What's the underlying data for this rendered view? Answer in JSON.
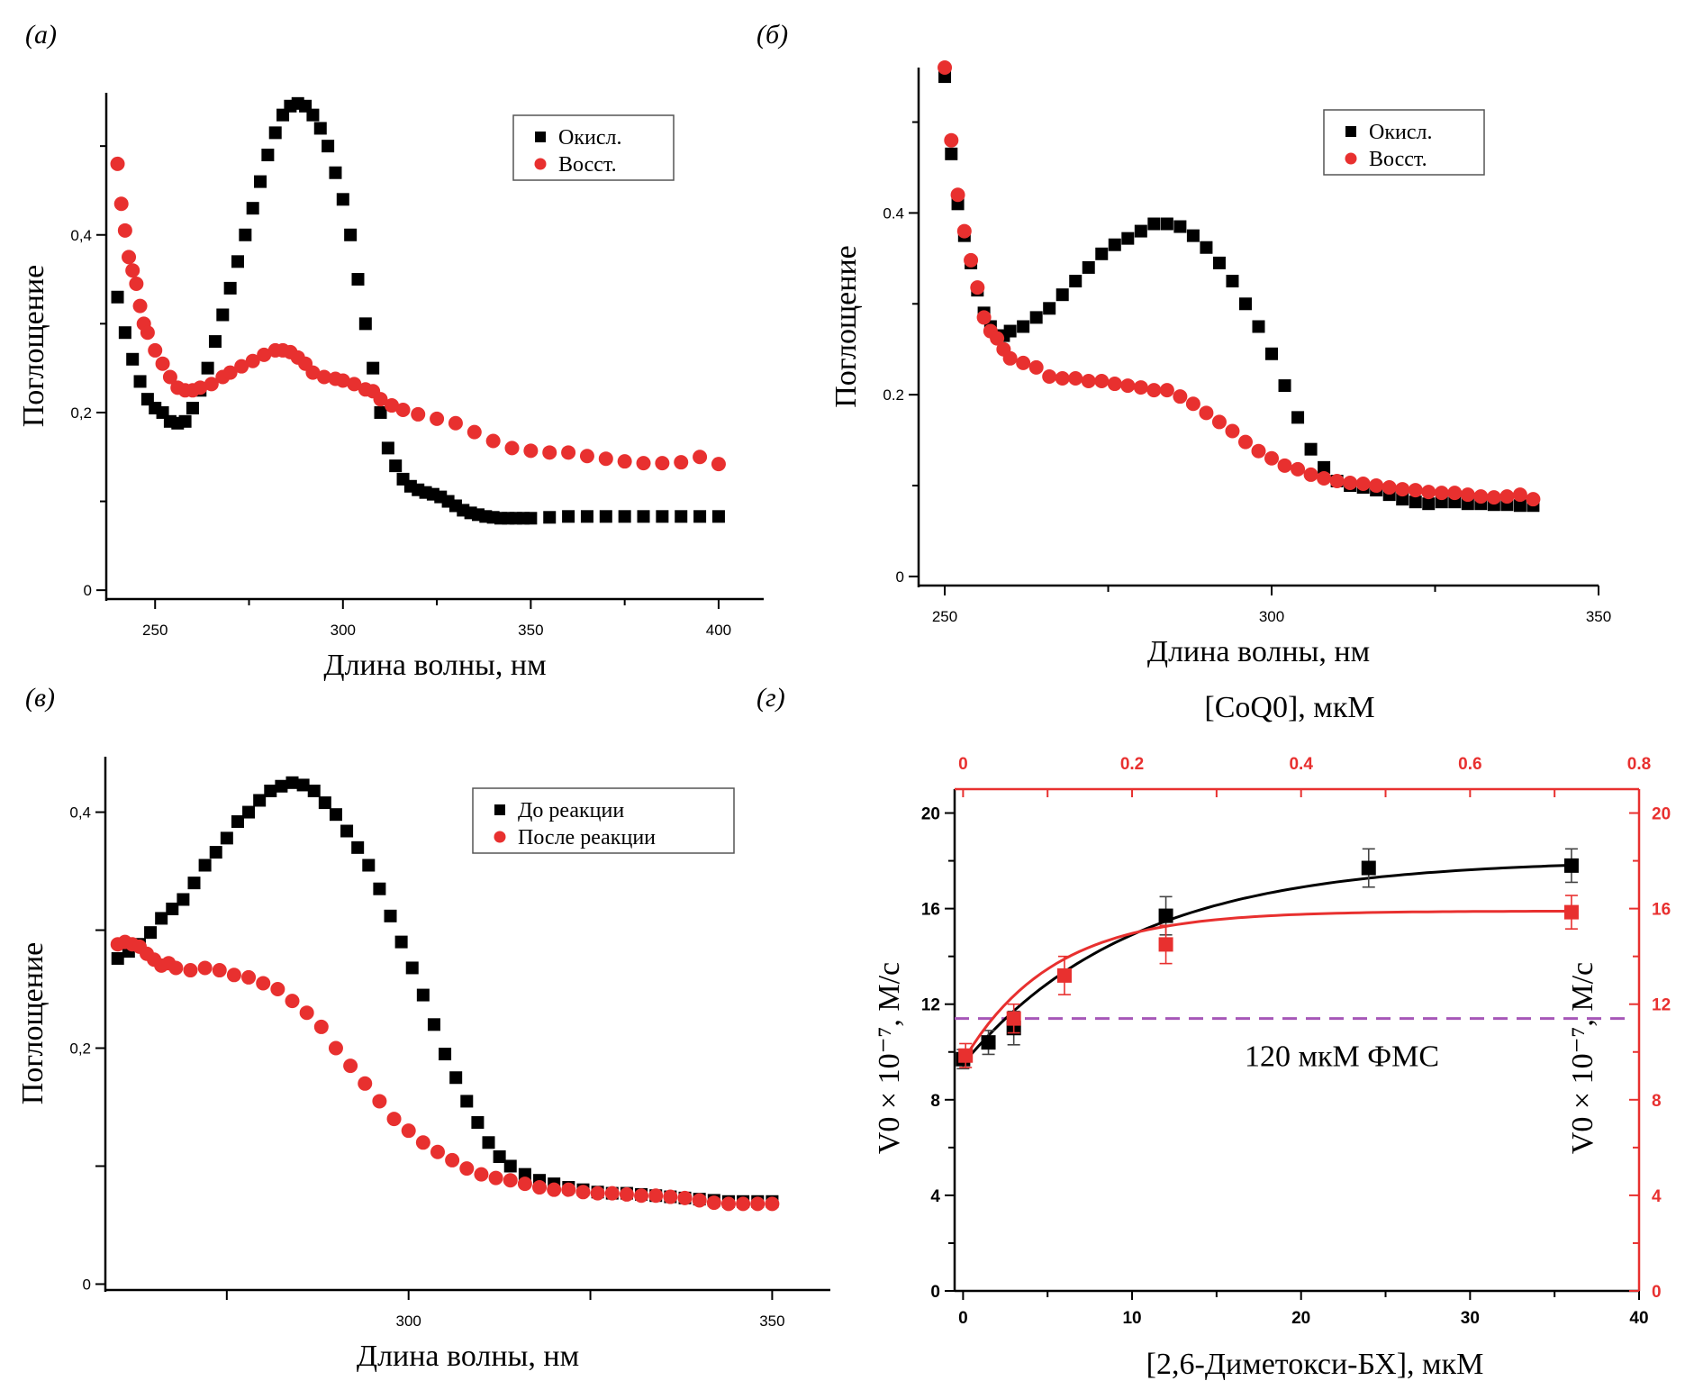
{
  "colors": {
    "black_series": "#000000",
    "red_series": "#e8302f",
    "dashed_line": "#a657b8",
    "axis_red": "#e8302f"
  },
  "chart_data": [
    {
      "id": "a",
      "panel_label": "(а)",
      "type": "scatter",
      "xlabel": "Длина волны, нм",
      "ylabel": "Поглощение",
      "xlim": [
        237,
        412
      ],
      "ylim": [
        -0.01,
        0.56
      ],
      "xticks": [
        250,
        300,
        350,
        400
      ],
      "xtick_labels": [
        "250",
        "300",
        "350",
        "400"
      ],
      "yticks": [
        0,
        0.2,
        0.4
      ],
      "ytick_labels": [
        "0",
        "0,2",
        "0,4"
      ],
      "grid": false,
      "legend_position": "top-right",
      "series": [
        {
          "name": "Окисл.",
          "marker": "square",
          "color": "#000000",
          "x": [
            240,
            242,
            244,
            246,
            248,
            250,
            252,
            254,
            256,
            258,
            260,
            262,
            264,
            266,
            268,
            270,
            272,
            274,
            276,
            278,
            280,
            282,
            284,
            286,
            288,
            290,
            292,
            294,
            296,
            298,
            300,
            302,
            304,
            306,
            308,
            310,
            312,
            314,
            316,
            318,
            320,
            322,
            324,
            326,
            328,
            330,
            332,
            334,
            336,
            338,
            340,
            342,
            344,
            346,
            348,
            350,
            355,
            360,
            365,
            370,
            375,
            380,
            385,
            390,
            395,
            400
          ],
          "y": [
            0.33,
            0.29,
            0.26,
            0.235,
            0.215,
            0.205,
            0.2,
            0.19,
            0.188,
            0.19,
            0.205,
            0.225,
            0.25,
            0.28,
            0.31,
            0.34,
            0.37,
            0.4,
            0.43,
            0.46,
            0.49,
            0.515,
            0.535,
            0.545,
            0.548,
            0.545,
            0.535,
            0.52,
            0.5,
            0.47,
            0.44,
            0.4,
            0.35,
            0.3,
            0.25,
            0.2,
            0.16,
            0.14,
            0.125,
            0.117,
            0.113,
            0.11,
            0.108,
            0.105,
            0.1,
            0.095,
            0.09,
            0.087,
            0.085,
            0.083,
            0.082,
            0.081,
            0.081,
            0.081,
            0.081,
            0.081,
            0.082,
            0.083,
            0.083,
            0.083,
            0.083,
            0.083,
            0.083,
            0.083,
            0.083,
            0.083
          ]
        },
        {
          "name": "Восст.",
          "marker": "circle",
          "color": "#e8302f",
          "x": [
            240,
            241,
            242,
            243,
            244,
            245,
            246,
            247,
            248,
            250,
            252,
            254,
            256,
            258,
            260,
            262,
            265,
            268,
            270,
            273,
            276,
            279,
            282,
            284,
            286,
            288,
            290,
            292,
            295,
            298,
            300,
            303,
            306,
            308,
            310,
            313,
            316,
            320,
            325,
            330,
            335,
            340,
            345,
            350,
            355,
            360,
            365,
            370,
            375,
            380,
            385,
            390,
            395,
            400
          ],
          "y": [
            0.48,
            0.435,
            0.405,
            0.375,
            0.36,
            0.345,
            0.32,
            0.3,
            0.29,
            0.27,
            0.255,
            0.24,
            0.228,
            0.225,
            0.225,
            0.228,
            0.232,
            0.24,
            0.245,
            0.252,
            0.258,
            0.265,
            0.27,
            0.27,
            0.268,
            0.262,
            0.255,
            0.245,
            0.24,
            0.238,
            0.236,
            0.232,
            0.226,
            0.224,
            0.215,
            0.208,
            0.203,
            0.198,
            0.193,
            0.188,
            0.178,
            0.168,
            0.16,
            0.157,
            0.155,
            0.155,
            0.151,
            0.148,
            0.145,
            0.143,
            0.143,
            0.144,
            0.15,
            0.142
          ]
        }
      ]
    },
    {
      "id": "b",
      "panel_label": "(б)",
      "type": "scatter",
      "xlabel": "Длина волны, нм",
      "ylabel": "Поглощение",
      "xlim": [
        246,
        350
      ],
      "ylim": [
        -0.01,
        0.56
      ],
      "xticks": [
        250,
        300,
        350
      ],
      "xtick_labels": [
        "250",
        "300",
        "350"
      ],
      "yticks": [
        0,
        0.2,
        0.4
      ],
      "ytick_labels": [
        "0",
        "0.2",
        "0.4"
      ],
      "grid": false,
      "legend_position": "top-right",
      "series": [
        {
          "name": "Окисл.",
          "marker": "square",
          "color": "#000000",
          "x": [
            250,
            251,
            252,
            253,
            254,
            255,
            256,
            257,
            258,
            259,
            260,
            262,
            264,
            266,
            268,
            270,
            272,
            274,
            276,
            278,
            280,
            282,
            284,
            286,
            288,
            290,
            292,
            294,
            296,
            298,
            300,
            302,
            304,
            306,
            308,
            310,
            312,
            314,
            316,
            318,
            320,
            322,
            324,
            326,
            328,
            330,
            332,
            334,
            336,
            338,
            340
          ],
          "y": [
            0.55,
            0.465,
            0.41,
            0.375,
            0.345,
            0.315,
            0.29,
            0.275,
            0.265,
            0.265,
            0.27,
            0.275,
            0.285,
            0.295,
            0.31,
            0.325,
            0.34,
            0.355,
            0.365,
            0.372,
            0.38,
            0.388,
            0.388,
            0.385,
            0.375,
            0.362,
            0.345,
            0.325,
            0.3,
            0.275,
            0.245,
            0.21,
            0.175,
            0.14,
            0.12,
            0.105,
            0.1,
            0.098,
            0.095,
            0.09,
            0.085,
            0.082,
            0.08,
            0.082,
            0.082,
            0.08,
            0.08,
            0.079,
            0.079,
            0.078,
            0.078
          ]
        },
        {
          "name": "Восст.",
          "marker": "circle",
          "color": "#e8302f",
          "x": [
            250,
            251,
            252,
            253,
            254,
            255,
            256,
            257,
            258,
            259,
            260,
            262,
            264,
            266,
            268,
            270,
            272,
            274,
            276,
            278,
            280,
            282,
            284,
            286,
            288,
            290,
            292,
            294,
            296,
            298,
            300,
            302,
            304,
            306,
            308,
            310,
            312,
            314,
            316,
            318,
            320,
            322,
            324,
            326,
            328,
            330,
            332,
            334,
            336,
            338,
            340
          ],
          "y": [
            0.56,
            0.48,
            0.42,
            0.38,
            0.348,
            0.318,
            0.285,
            0.27,
            0.262,
            0.25,
            0.24,
            0.235,
            0.23,
            0.22,
            0.218,
            0.218,
            0.215,
            0.215,
            0.212,
            0.21,
            0.208,
            0.205,
            0.205,
            0.198,
            0.19,
            0.18,
            0.17,
            0.16,
            0.148,
            0.138,
            0.13,
            0.122,
            0.118,
            0.112,
            0.108,
            0.105,
            0.103,
            0.102,
            0.1,
            0.098,
            0.096,
            0.095,
            0.093,
            0.092,
            0.092,
            0.09,
            0.088,
            0.087,
            0.088,
            0.09,
            0.085
          ]
        }
      ]
    },
    {
      "id": "c",
      "panel_label": "(в)",
      "type": "scatter",
      "xlabel": "Длина волны, нм",
      "ylabel": "Поглощение",
      "xlim": [
        258.3,
        358
      ],
      "ylim": [
        -0.005,
        0.447
      ],
      "xticks": [
        275,
        300,
        325,
        350
      ],
      "xtick_labels": [
        "",
        "300",
        "",
        "350"
      ],
      "yticks": [
        0,
        0.1,
        0.2,
        0.3,
        0.4
      ],
      "ytick_labels": [
        "0",
        "",
        "0,2",
        "",
        "0,4"
      ],
      "grid": false,
      "legend_position": "top-right",
      "series": [
        {
          "name": "До реакции",
          "marker": "square",
          "color": "#000000",
          "x": [
            260,
            261.5,
            263,
            264.5,
            266,
            267.5,
            269,
            270.5,
            272,
            273.5,
            275,
            276.5,
            278,
            279.5,
            281,
            282.5,
            284,
            285.5,
            287,
            288.5,
            290,
            291.5,
            293,
            294.5,
            296,
            297.5,
            299,
            300.5,
            302,
            303.5,
            305,
            306.5,
            308,
            309.5,
            311,
            312.5,
            314,
            316,
            318,
            320,
            322,
            324,
            326,
            328,
            330,
            332,
            334,
            336,
            338,
            340,
            342,
            344,
            346,
            348,
            350
          ],
          "y": [
            0.276,
            0.282,
            0.288,
            0.298,
            0.31,
            0.318,
            0.326,
            0.34,
            0.355,
            0.366,
            0.378,
            0.392,
            0.4,
            0.41,
            0.418,
            0.422,
            0.425,
            0.423,
            0.418,
            0.408,
            0.398,
            0.384,
            0.37,
            0.355,
            0.335,
            0.312,
            0.29,
            0.268,
            0.245,
            0.22,
            0.195,
            0.175,
            0.155,
            0.137,
            0.12,
            0.108,
            0.1,
            0.093,
            0.088,
            0.085,
            0.082,
            0.08,
            0.078,
            0.077,
            0.077,
            0.076,
            0.075,
            0.074,
            0.073,
            0.072,
            0.071,
            0.07,
            0.07,
            0.07,
            0.07
          ]
        },
        {
          "name": "После реакции",
          "marker": "circle",
          "color": "#e8302f",
          "x": [
            260,
            261,
            262,
            263,
            264,
            265,
            266,
            267,
            268,
            270,
            272,
            274,
            276,
            278,
            280,
            282,
            284,
            286,
            288,
            290,
            292,
            294,
            296,
            298,
            300,
            302,
            304,
            306,
            308,
            310,
            312,
            314,
            316,
            318,
            320,
            322,
            324,
            326,
            328,
            330,
            332,
            334,
            336,
            338,
            340,
            342,
            344,
            346,
            348,
            350
          ],
          "y": [
            0.288,
            0.29,
            0.288,
            0.286,
            0.28,
            0.275,
            0.27,
            0.272,
            0.268,
            0.266,
            0.268,
            0.266,
            0.262,
            0.26,
            0.255,
            0.25,
            0.24,
            0.23,
            0.218,
            0.2,
            0.185,
            0.17,
            0.155,
            0.14,
            0.13,
            0.12,
            0.112,
            0.105,
            0.098,
            0.093,
            0.09,
            0.088,
            0.085,
            0.082,
            0.08,
            0.08,
            0.078,
            0.077,
            0.077,
            0.076,
            0.075,
            0.075,
            0.074,
            0.073,
            0.071,
            0.069,
            0.068,
            0.068,
            0.068,
            0.068
          ]
        }
      ]
    },
    {
      "id": "d",
      "panel_label": "(г)",
      "type": "scatter",
      "xlabel": "[2,6-Диметокси-БХ], мкМ",
      "xlabel_top": "[CoQ0], мкМ",
      "ylabel": "V0 × 10⁻⁷, М/с",
      "ylabel_right": "V0 × 10⁻⁷, М/с",
      "xlim": [
        -0.5,
        40
      ],
      "xlim_top": [
        -0.01,
        0.8
      ],
      "ylim": [
        0,
        21
      ],
      "xticks": [
        0,
        5,
        10,
        15,
        20,
        25,
        30,
        35,
        40
      ],
      "xtick_labels": [
        "0",
        "",
        "10",
        "",
        "20",
        "",
        "30",
        "",
        "40"
      ],
      "xticks_top": [
        0,
        0.1,
        0.2,
        0.3,
        0.4,
        0.5,
        0.6,
        0.7,
        0.8
      ],
      "xtick_labels_top": [
        "0",
        "",
        "0.2",
        "",
        "0.4",
        "",
        "0.6",
        "",
        "0.8"
      ],
      "yticks": [
        0,
        2,
        4,
        6,
        8,
        10,
        12,
        14,
        16,
        18,
        20
      ],
      "ytick_labels": [
        "0",
        "",
        "4",
        "",
        "8",
        "",
        "12",
        "",
        "16",
        "",
        "20"
      ],
      "grid": false,
      "annotation": {
        "text": "120 мкМ ФМС",
        "y_value": 11.4,
        "style": "dashed"
      },
      "series": [
        {
          "name": "2,6-Диметокси-БХ",
          "axis": "bottom-left",
          "marker": "square",
          "color": "#000000",
          "x": [
            0,
            1.5,
            3,
            12,
            24,
            36
          ],
          "y": [
            9.7,
            10.4,
            11.0,
            15.7,
            17.7,
            17.8
          ],
          "yerr": [
            0.4,
            0.5,
            0.7,
            0.8,
            0.8,
            0.7
          ],
          "fit": {
            "y0": 9.5,
            "plateau": 18.05,
            "k": 0.1
          }
        },
        {
          "name": "CoQ0",
          "axis": "top-right",
          "marker": "square",
          "color": "#e8302f",
          "x": [
            0.003,
            0.06,
            0.12,
            0.24,
            0.72
          ],
          "y": [
            9.85,
            11.4,
            13.2,
            14.5,
            15.85
          ],
          "yerr": [
            0.5,
            0.6,
            0.8,
            0.8,
            0.7
          ],
          "fit": {
            "y0": 9.8,
            "plateau": 15.9,
            "k": 9.5
          }
        }
      ]
    }
  ]
}
